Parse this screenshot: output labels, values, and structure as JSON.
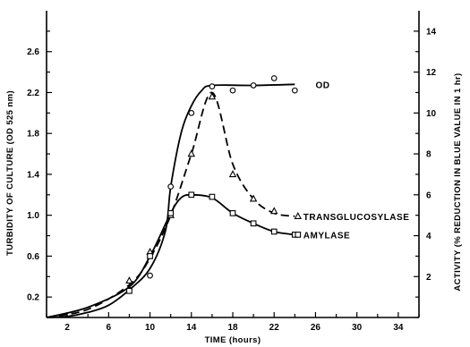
{
  "chart_data": {
    "type": "line",
    "xlabel": "TIME (hours)",
    "ylabel_left": "TURBIDITY OF CULTURE (OD 525 nm)",
    "ylabel_right": "ACTIVITY (% REDUCTION IN BLUE VALUE IN 1 hr)",
    "x_ticks": [
      2,
      6,
      10,
      14,
      18,
      22,
      26,
      30,
      34
    ],
    "y_left_ticks": [
      "0.2",
      "0.6",
      "1.0",
      "1.4",
      "1.8",
      "2.2",
      "2.6"
    ],
    "y_right_ticks": [
      "2",
      "4",
      "6",
      "8",
      "10",
      "12",
      "14"
    ],
    "xlim": [
      0,
      36
    ],
    "ylim_left": [
      0,
      3.0
    ],
    "ylim_right": [
      0,
      15
    ],
    "grid": false,
    "series": [
      {
        "name": "OD",
        "axis": "left",
        "marker": "circle",
        "line": "solid",
        "points": [
          [
            8,
            0.27
          ],
          [
            10,
            0.41
          ],
          [
            12,
            1.28
          ],
          [
            14,
            2.0
          ],
          [
            16,
            2.26
          ],
          [
            18,
            2.22
          ],
          [
            20,
            2.27
          ],
          [
            22,
            2.34
          ],
          [
            24,
            2.22
          ]
        ],
        "curve": [
          [
            0,
            0.0
          ],
          [
            2,
            0.01
          ],
          [
            4,
            0.05
          ],
          [
            6,
            0.12
          ],
          [
            8,
            0.27
          ],
          [
            10,
            0.48
          ],
          [
            11.5,
            0.85
          ],
          [
            12,
            1.28
          ],
          [
            13,
            1.8
          ],
          [
            14,
            2.07
          ],
          [
            15,
            2.22
          ],
          [
            16,
            2.27
          ],
          [
            20,
            2.27
          ],
          [
            24,
            2.28
          ]
        ]
      },
      {
        "name": "TRANSGLUCOSYLASE",
        "axis": "right",
        "marker": "triangle",
        "line": "dashed",
        "points": [
          [
            8,
            1.8
          ],
          [
            10,
            3.2
          ],
          [
            12,
            5.0
          ],
          [
            14,
            8.0
          ],
          [
            16,
            10.8
          ],
          [
            18,
            7.0
          ],
          [
            20,
            5.8
          ],
          [
            22,
            5.2
          ]
        ],
        "curve": [
          [
            0,
            0.0
          ],
          [
            4,
            0.4
          ],
          [
            8,
            1.6
          ],
          [
            10,
            2.9
          ],
          [
            12,
            5.0
          ],
          [
            14,
            8.0
          ],
          [
            16,
            11.0
          ],
          [
            18,
            7.5
          ],
          [
            20,
            5.8
          ],
          [
            22,
            5.1
          ],
          [
            24,
            4.95
          ]
        ]
      },
      {
        "name": "AMYLASE",
        "axis": "right",
        "marker": "square",
        "line": "solid",
        "points": [
          [
            8,
            1.3
          ],
          [
            10,
            3.0
          ],
          [
            12,
            5.1
          ],
          [
            14,
            6.0
          ],
          [
            16,
            5.9
          ],
          [
            18,
            5.1
          ],
          [
            20,
            4.6
          ],
          [
            22,
            4.2
          ],
          [
            24,
            4.05
          ]
        ],
        "curve": [
          [
            0,
            0.0
          ],
          [
            4,
            0.5
          ],
          [
            8,
            1.5
          ],
          [
            10,
            3.0
          ],
          [
            12,
            5.1
          ],
          [
            13,
            5.85
          ],
          [
            14,
            6.0
          ],
          [
            16,
            5.85
          ],
          [
            18,
            5.1
          ],
          [
            20,
            4.6
          ],
          [
            22,
            4.2
          ],
          [
            24,
            4.05
          ]
        ]
      }
    ]
  }
}
